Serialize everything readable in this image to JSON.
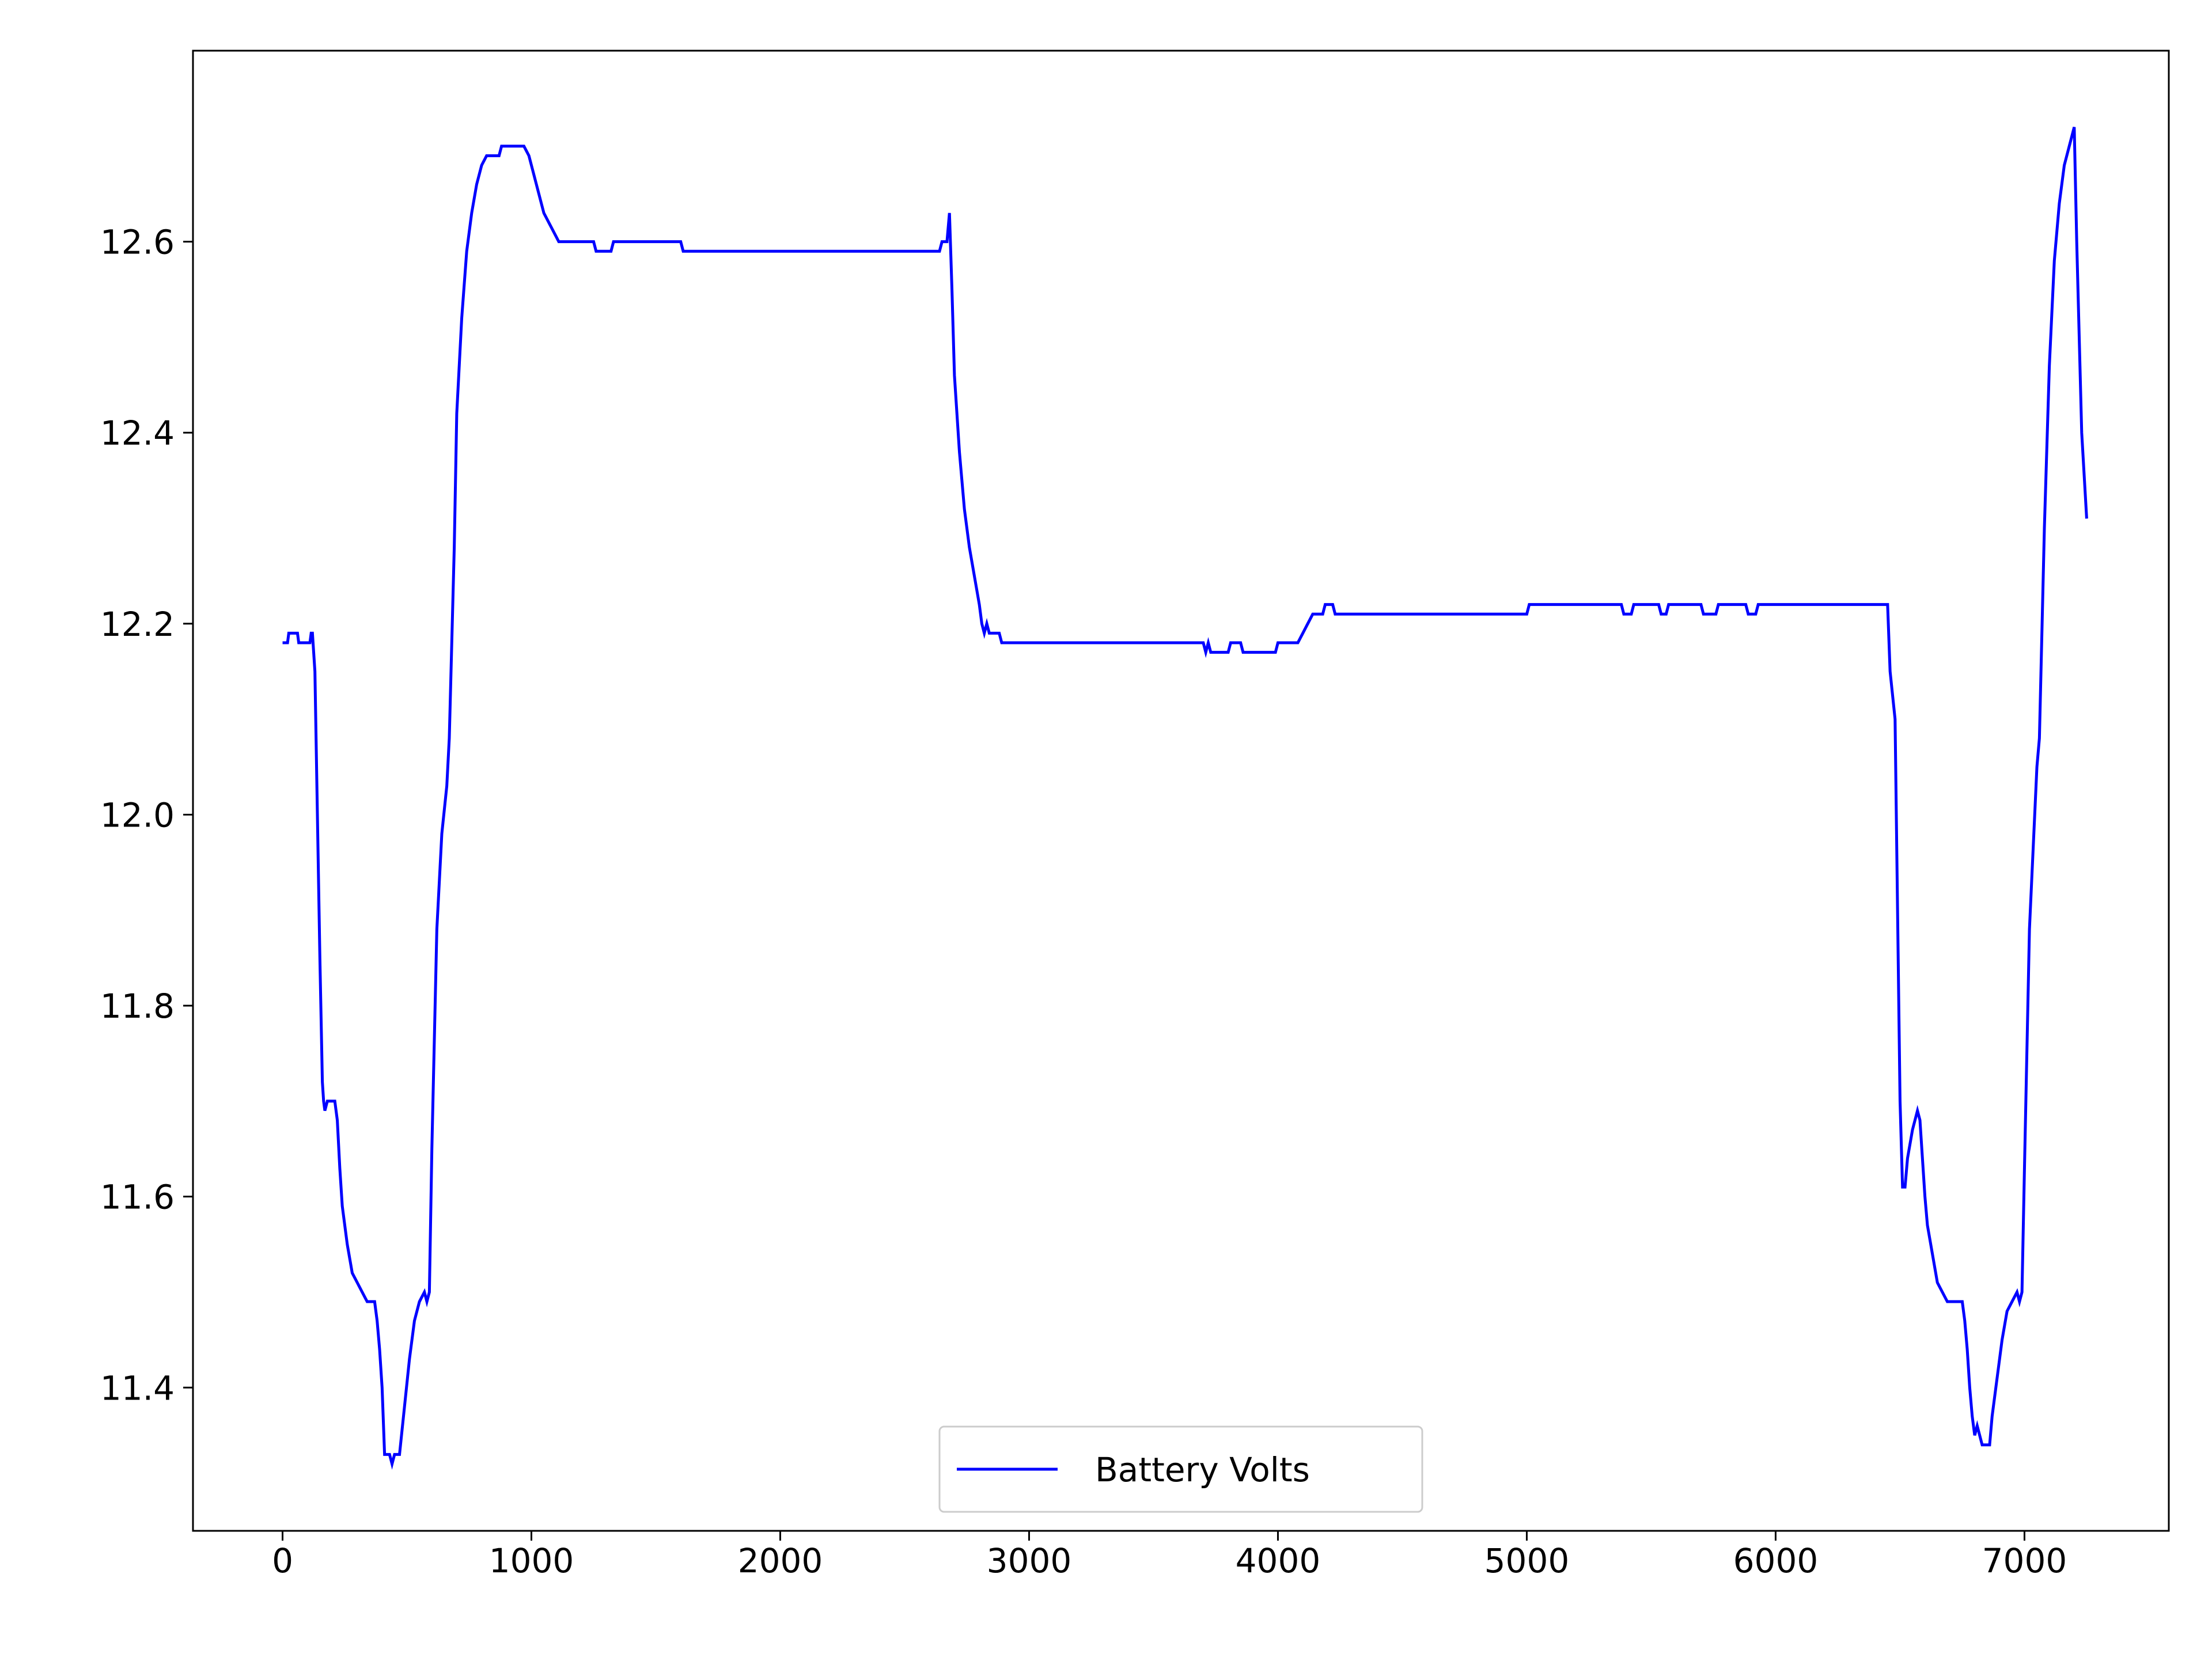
{
  "chart_data": {
    "type": "line",
    "title": "",
    "xlabel": "",
    "ylabel": "",
    "xlim": [
      -360,
      7580
    ],
    "ylim": [
      11.25,
      12.8
    ],
    "x_ticks": [
      0,
      1000,
      2000,
      3000,
      4000,
      5000,
      6000,
      7000
    ],
    "x_tick_labels": [
      "0",
      "1000",
      "2000",
      "3000",
      "4000",
      "5000",
      "6000",
      "7000"
    ],
    "y_ticks": [
      11.4,
      11.6,
      11.8,
      12.0,
      12.2,
      12.4,
      12.6
    ],
    "y_tick_labels": [
      "11.4",
      "11.6",
      "11.8",
      "12.0",
      "12.2",
      "12.4",
      "12.6"
    ],
    "grid": false,
    "legend_position": "lower-center",
    "series": [
      {
        "name": "Battery Volts",
        "color": "#0000ff",
        "points": [
          [
            0,
            12.18
          ],
          [
            20,
            12.18
          ],
          [
            25,
            12.19
          ],
          [
            60,
            12.19
          ],
          [
            65,
            12.18
          ],
          [
            110,
            12.18
          ],
          [
            115,
            12.19
          ],
          [
            120,
            12.19
          ],
          [
            130,
            12.15
          ],
          [
            140,
            12.0
          ],
          [
            150,
            11.85
          ],
          [
            160,
            11.72
          ],
          [
            165,
            11.7
          ],
          [
            170,
            11.69
          ],
          [
            180,
            11.7
          ],
          [
            210,
            11.7
          ],
          [
            220,
            11.68
          ],
          [
            230,
            11.63
          ],
          [
            240,
            11.59
          ],
          [
            260,
            11.55
          ],
          [
            280,
            11.52
          ],
          [
            300,
            11.51
          ],
          [
            320,
            11.5
          ],
          [
            340,
            11.49
          ],
          [
            370,
            11.49
          ],
          [
            380,
            11.47
          ],
          [
            390,
            11.44
          ],
          [
            400,
            11.4
          ],
          [
            410,
            11.33
          ],
          [
            430,
            11.33
          ],
          [
            440,
            11.32
          ],
          [
            450,
            11.33
          ],
          [
            470,
            11.33
          ],
          [
            490,
            11.38
          ],
          [
            510,
            11.43
          ],
          [
            530,
            11.47
          ],
          [
            550,
            11.49
          ],
          [
            570,
            11.5
          ],
          [
            580,
            11.49
          ],
          [
            590,
            11.5
          ],
          [
            600,
            11.65
          ],
          [
            620,
            11.88
          ],
          [
            640,
            11.98
          ],
          [
            660,
            12.03
          ],
          [
            670,
            12.08
          ],
          [
            690,
            12.28
          ],
          [
            700,
            12.42
          ],
          [
            720,
            12.52
          ],
          [
            740,
            12.59
          ],
          [
            760,
            12.63
          ],
          [
            780,
            12.66
          ],
          [
            800,
            12.68
          ],
          [
            820,
            12.69
          ],
          [
            870,
            12.69
          ],
          [
            880,
            12.7
          ],
          [
            970,
            12.7
          ],
          [
            990,
            12.69
          ],
          [
            1010,
            12.67
          ],
          [
            1030,
            12.65
          ],
          [
            1050,
            12.63
          ],
          [
            1070,
            12.62
          ],
          [
            1090,
            12.61
          ],
          [
            1110,
            12.6
          ],
          [
            1250,
            12.6
          ],
          [
            1260,
            12.59
          ],
          [
            1320,
            12.59
          ],
          [
            1330,
            12.6
          ],
          [
            1600,
            12.6
          ],
          [
            1610,
            12.59
          ],
          [
            2640,
            12.59
          ],
          [
            2650,
            12.6
          ],
          [
            2670,
            12.6
          ],
          [
            2680,
            12.63
          ],
          [
            2690,
            12.55
          ],
          [
            2700,
            12.46
          ],
          [
            2720,
            12.38
          ],
          [
            2740,
            12.32
          ],
          [
            2760,
            12.28
          ],
          [
            2780,
            12.25
          ],
          [
            2800,
            12.22
          ],
          [
            2810,
            12.2
          ],
          [
            2820,
            12.19
          ],
          [
            2830,
            12.2
          ],
          [
            2840,
            12.19
          ],
          [
            2880,
            12.19
          ],
          [
            2890,
            12.18
          ],
          [
            3700,
            12.18
          ],
          [
            3710,
            12.17
          ],
          [
            3720,
            12.18
          ],
          [
            3730,
            12.17
          ],
          [
            3800,
            12.17
          ],
          [
            3810,
            12.18
          ],
          [
            3850,
            12.18
          ],
          [
            3860,
            12.17
          ],
          [
            3990,
            12.17
          ],
          [
            4000,
            12.18
          ],
          [
            4080,
            12.18
          ],
          [
            4100,
            12.19
          ],
          [
            4120,
            12.2
          ],
          [
            4140,
            12.21
          ],
          [
            4180,
            12.21
          ],
          [
            4190,
            12.22
          ],
          [
            4220,
            12.22
          ],
          [
            4230,
            12.21
          ],
          [
            5000,
            12.21
          ],
          [
            5010,
            12.22
          ],
          [
            5380,
            12.22
          ],
          [
            5390,
            12.21
          ],
          [
            5420,
            12.21
          ],
          [
            5430,
            12.22
          ],
          [
            5530,
            12.22
          ],
          [
            5540,
            12.21
          ],
          [
            5560,
            12.21
          ],
          [
            5570,
            12.22
          ],
          [
            5700,
            12.22
          ],
          [
            5710,
            12.21
          ],
          [
            5760,
            12.21
          ],
          [
            5770,
            12.22
          ],
          [
            5880,
            12.22
          ],
          [
            5890,
            12.21
          ],
          [
            5920,
            12.21
          ],
          [
            5930,
            12.22
          ],
          [
            6450,
            12.22
          ],
          [
            6460,
            12.15
          ],
          [
            6480,
            12.1
          ],
          [
            6490,
            11.9
          ],
          [
            6500,
            11.7
          ],
          [
            6510,
            11.61
          ],
          [
            6520,
            11.61
          ],
          [
            6530,
            11.64
          ],
          [
            6550,
            11.67
          ],
          [
            6570,
            11.69
          ],
          [
            6580,
            11.68
          ],
          [
            6600,
            11.6
          ],
          [
            6610,
            11.57
          ],
          [
            6630,
            11.54
          ],
          [
            6650,
            11.51
          ],
          [
            6670,
            11.5
          ],
          [
            6690,
            11.49
          ],
          [
            6750,
            11.49
          ],
          [
            6760,
            11.47
          ],
          [
            6770,
            11.44
          ],
          [
            6780,
            11.4
          ],
          [
            6790,
            11.37
          ],
          [
            6800,
            11.35
          ],
          [
            6810,
            11.36
          ],
          [
            6820,
            11.35
          ],
          [
            6830,
            11.34
          ],
          [
            6860,
            11.34
          ],
          [
            6870,
            11.37
          ],
          [
            6890,
            11.41
          ],
          [
            6910,
            11.45
          ],
          [
            6930,
            11.48
          ],
          [
            6950,
            11.49
          ],
          [
            6970,
            11.5
          ],
          [
            6980,
            11.49
          ],
          [
            6990,
            11.5
          ],
          [
            7000,
            11.63
          ],
          [
            7020,
            11.88
          ],
          [
            7050,
            12.05
          ],
          [
            7060,
            12.08
          ],
          [
            7080,
            12.3
          ],
          [
            7100,
            12.47
          ],
          [
            7120,
            12.58
          ],
          [
            7140,
            12.64
          ],
          [
            7160,
            12.68
          ],
          [
            7180,
            12.7
          ],
          [
            7190,
            12.71
          ],
          [
            7200,
            12.72
          ],
          [
            7210,
            12.6
          ],
          [
            7230,
            12.4
          ],
          [
            7250,
            12.31
          ]
        ]
      }
    ]
  }
}
